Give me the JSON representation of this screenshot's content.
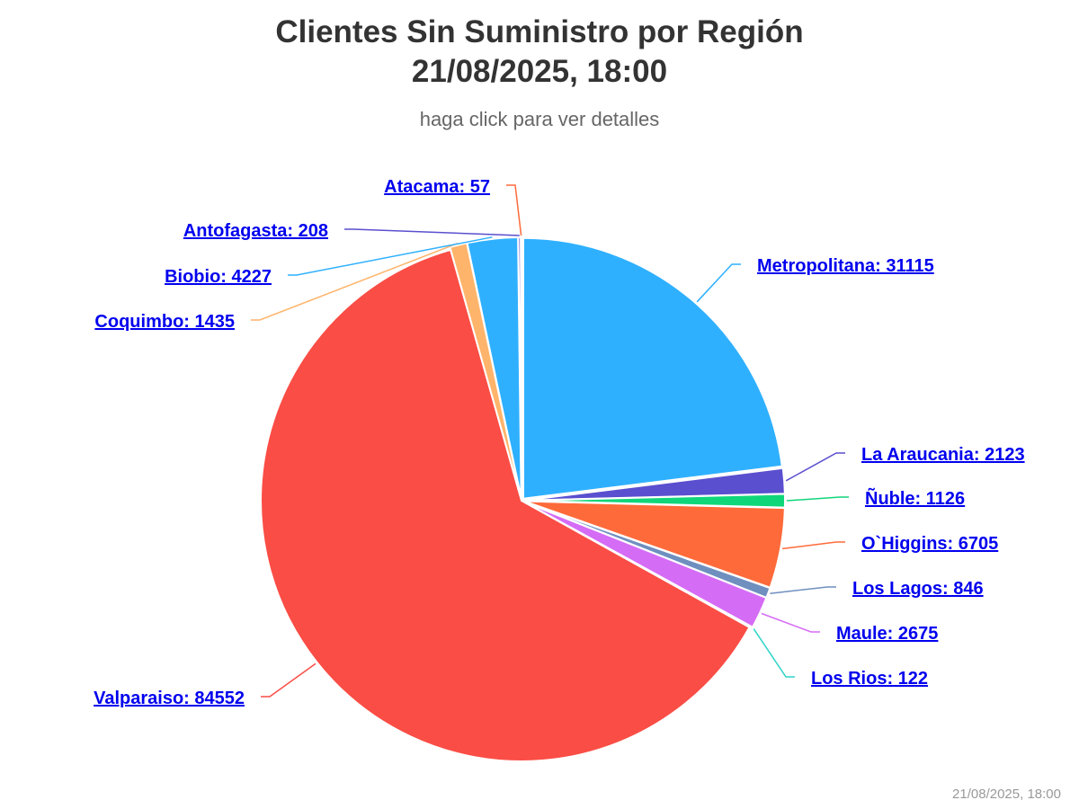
{
  "title_line1": "Clientes Sin Suministro por Región",
  "title_line2": "21/08/2025, 18:00",
  "subtitle": "haga click para ver detalles",
  "credit": "21/08/2025, 18:00",
  "chart_data": {
    "type": "pie",
    "start_angle_deg": 0,
    "direction": "clockwise",
    "slices": [
      {
        "name": "Metropolitana",
        "value": 31115,
        "color": "#2fb0ff"
      },
      {
        "name": "La Araucania",
        "value": 2123,
        "color": "#5a4fcf"
      },
      {
        "name": "Ñuble",
        "value": 1126,
        "color": "#10d67a"
      },
      {
        "name": "O`Higgins",
        "value": 6705,
        "color": "#ff6a3a"
      },
      {
        "name": "Los Lagos",
        "value": 846,
        "color": "#6f8fbf"
      },
      {
        "name": "Maule",
        "value": 2675,
        "color": "#d56cf5"
      },
      {
        "name": "Los Rios",
        "value": 122,
        "color": "#2ed3c8"
      },
      {
        "name": "Valparaiso",
        "value": 84552,
        "color": "#fa4d45"
      },
      {
        "name": "Coquimbo",
        "value": 1435,
        "color": "#ffb46b"
      },
      {
        "name": "Biobio",
        "value": 4227,
        "color": "#2fb0ff"
      },
      {
        "name": "Antofagasta",
        "value": 208,
        "color": "#5a4fcf"
      },
      {
        "name": "Atacama",
        "value": 57,
        "color": "#ff6a3a"
      }
    ]
  }
}
